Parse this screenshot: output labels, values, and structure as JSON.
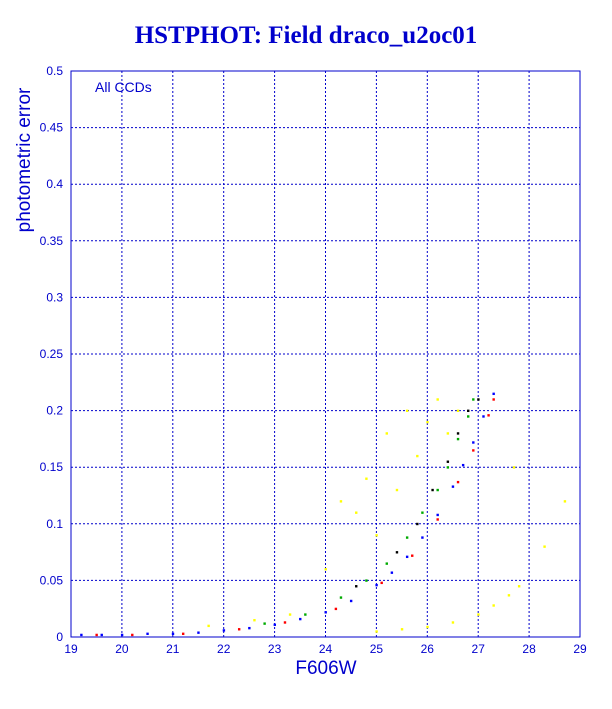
{
  "chart_data": {
    "type": "scatter",
    "title": "HSTPHOT: Field draco_u2oc01",
    "xlabel": "F606W",
    "ylabel": "photometric error",
    "annotation": "All CCDs",
    "xlim": [
      19,
      29
    ],
    "ylim": [
      0,
      0.5
    ],
    "x_ticks": [
      "19",
      "20",
      "21",
      "22",
      "23",
      "24",
      "25",
      "26",
      "27",
      "28",
      "29"
    ],
    "y_ticks": [
      "0",
      "0.05",
      "0.1",
      "0.15",
      "0.2",
      "0.25",
      "0.3",
      "0.35",
      "0.4",
      "0.45",
      "0.5"
    ],
    "grid": true,
    "series": [
      {
        "color": "#0000ff",
        "points": [
          [
            19.2,
            0.002
          ],
          [
            19.6,
            0.002
          ],
          [
            20.0,
            0.002
          ],
          [
            20.5,
            0.003
          ],
          [
            21.0,
            0.003
          ],
          [
            21.5,
            0.004
          ],
          [
            22.0,
            0.006
          ],
          [
            22.5,
            0.008
          ],
          [
            23.0,
            0.011
          ],
          [
            23.5,
            0.016
          ],
          [
            24.0,
            0.022
          ],
          [
            24.5,
            0.032
          ],
          [
            25.0,
            0.046
          ],
          [
            25.3,
            0.057
          ],
          [
            25.6,
            0.071
          ],
          [
            25.9,
            0.088
          ],
          [
            26.2,
            0.108
          ],
          [
            26.5,
            0.133
          ],
          [
            26.7,
            0.152
          ],
          [
            26.9,
            0.172
          ],
          [
            27.1,
            0.195
          ],
          [
            27.3,
            0.215
          ]
        ]
      },
      {
        "color": "#ff0000",
        "points": [
          [
            19.5,
            0.002
          ],
          [
            20.2,
            0.002
          ],
          [
            21.2,
            0.003
          ],
          [
            22.3,
            0.007
          ],
          [
            23.2,
            0.013
          ],
          [
            24.2,
            0.025
          ],
          [
            25.1,
            0.048
          ],
          [
            25.7,
            0.072
          ],
          [
            26.2,
            0.104
          ],
          [
            26.6,
            0.137
          ],
          [
            26.9,
            0.165
          ],
          [
            27.2,
            0.196
          ],
          [
            27.3,
            0.21
          ]
        ]
      },
      {
        "color": "#00aa00",
        "points": [
          [
            22.8,
            0.012
          ],
          [
            23.6,
            0.02
          ],
          [
            24.3,
            0.035
          ],
          [
            24.8,
            0.05
          ],
          [
            25.2,
            0.065
          ],
          [
            25.6,
            0.088
          ],
          [
            25.9,
            0.11
          ],
          [
            26.2,
            0.13
          ],
          [
            26.4,
            0.15
          ],
          [
            26.6,
            0.175
          ],
          [
            26.8,
            0.195
          ],
          [
            26.9,
            0.21
          ]
        ]
      },
      {
        "color": "#000000",
        "points": [
          [
            24.6,
            0.045
          ],
          [
            25.4,
            0.075
          ],
          [
            25.8,
            0.1
          ],
          [
            26.1,
            0.13
          ],
          [
            26.4,
            0.155
          ],
          [
            26.6,
            0.18
          ],
          [
            26.8,
            0.2
          ],
          [
            27.0,
            0.21
          ]
        ]
      },
      {
        "color": "#ffff00",
        "points": [
          [
            21.7,
            0.01
          ],
          [
            22.6,
            0.015
          ],
          [
            23.3,
            0.02
          ],
          [
            24.0,
            0.06
          ],
          [
            24.3,
            0.12
          ],
          [
            24.6,
            0.11
          ],
          [
            24.8,
            0.14
          ],
          [
            25.0,
            0.09
          ],
          [
            25.2,
            0.18
          ],
          [
            25.4,
            0.13
          ],
          [
            25.6,
            0.2
          ],
          [
            25.8,
            0.16
          ],
          [
            26.0,
            0.19
          ],
          [
            26.2,
            0.21
          ],
          [
            26.4,
            0.18
          ],
          [
            26.6,
            0.2
          ],
          [
            25.0,
            0.005
          ],
          [
            25.5,
            0.007
          ],
          [
            26.0,
            0.009
          ],
          [
            26.5,
            0.013
          ],
          [
            27.0,
            0.02
          ],
          [
            27.3,
            0.028
          ],
          [
            27.6,
            0.037
          ],
          [
            27.8,
            0.045
          ],
          [
            28.3,
            0.08
          ],
          [
            28.7,
            0.12
          ],
          [
            27.7,
            0.15
          ]
        ]
      }
    ]
  }
}
